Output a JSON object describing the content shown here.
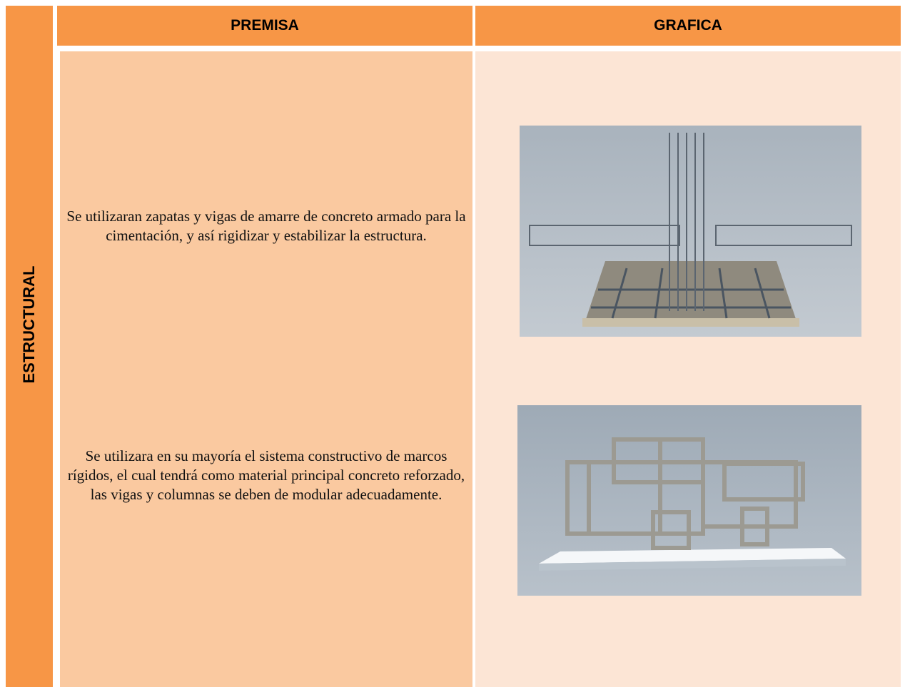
{
  "header": {
    "columns": [
      "PREMISA",
      "GRAFICA"
    ]
  },
  "row": {
    "label": "ESTRUCTURAL",
    "premises": [
      "Se utilizaran zapatas y vigas de amarre de concreto armado para la cimentación, y así rigidizar y estabilizar la estructura.",
      "Se utilizara en su mayoría el sistema constructivo de marcos rígidos, el cual tendrá como material principal concreto reforzado, las vigas y columnas se deben de modular adecuadamente."
    ]
  }
}
